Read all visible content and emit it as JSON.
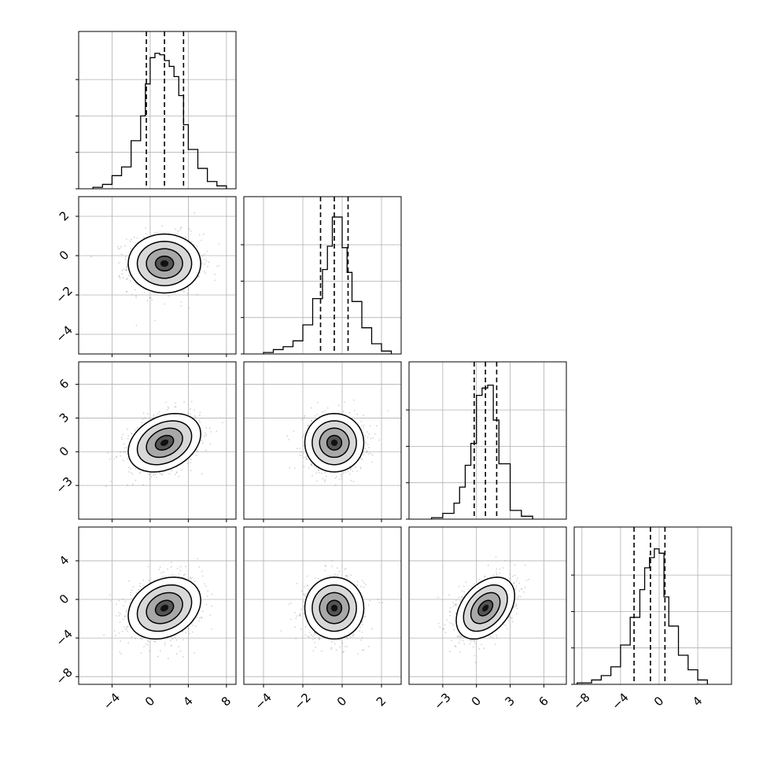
{
  "chart_data": {
    "type": "corner",
    "grid": true,
    "quantile_lines": "dashed",
    "params": [
      {
        "range": [
          -7.5,
          9.0
        ],
        "ticks": [
          -4,
          0,
          4,
          8
        ],
        "tick_labels": [
          "−4",
          "0",
          "4",
          "8"
        ],
        "quantiles": [
          -0.4,
          1.5,
          3.5
        ],
        "hist_ymax": 1.0
      },
      {
        "range": [
          -5.0,
          3.0
        ],
        "ticks": [
          -4,
          -2,
          0,
          2
        ],
        "tick_labels": [
          "−4",
          "−2",
          "0",
          "2"
        ],
        "quantiles": [
          -1.1,
          -0.4,
          0.3
        ],
        "hist_ymax": 1.0
      },
      {
        "range": [
          -6.0,
          8.0
        ],
        "ticks": [
          -3,
          0,
          3,
          6
        ],
        "tick_labels": [
          "−3",
          "0",
          "3",
          "6"
        ],
        "quantiles": [
          -0.2,
          0.8,
          1.8
        ],
        "hist_ymax": 1.0
      },
      {
        "range": [
          -8.8,
          7.5
        ],
        "ticks": [
          -8,
          -4,
          0,
          4
        ],
        "tick_labels": [
          "−8",
          "−4",
          "0",
          "4"
        ],
        "quantiles": [
          -2.6,
          -0.9,
          0.6
        ],
        "hist_ymax": 1.0
      }
    ],
    "histograms": [
      {
        "param": 0,
        "edges": [
          -6,
          -5,
          -4,
          -3,
          -2,
          -1,
          -0.5,
          0,
          0.5,
          1,
          1.5,
          2,
          2.5,
          3,
          3.5,
          4,
          5,
          6,
          7,
          8
        ],
        "values": [
          0.01,
          0.03,
          0.09,
          0.15,
          0.33,
          0.5,
          0.72,
          0.9,
          0.93,
          0.92,
          0.88,
          0.84,
          0.77,
          0.64,
          0.44,
          0.27,
          0.14,
          0.05,
          0.02
        ]
      },
      {
        "param": 1,
        "edges": [
          -4,
          -3.5,
          -3,
          -2.5,
          -2,
          -1.5,
          -1,
          -0.75,
          -0.5,
          -0.25,
          0,
          0.25,
          0.5,
          1,
          1.5,
          2,
          2.5
        ],
        "values": [
          0.01,
          0.03,
          0.05,
          0.09,
          0.2,
          0.38,
          0.58,
          0.74,
          0.94,
          0.94,
          0.73,
          0.56,
          0.36,
          0.18,
          0.07,
          0.02
        ]
      },
      {
        "param": 2,
        "edges": [
          -4,
          -3,
          -2,
          -1.5,
          -1,
          -0.5,
          0,
          0.5,
          1,
          1.5,
          2,
          3,
          4,
          5
        ],
        "values": [
          0.01,
          0.04,
          0.11,
          0.22,
          0.37,
          0.52,
          0.85,
          0.9,
          0.92,
          0.68,
          0.38,
          0.06,
          0.02
        ]
      },
      {
        "param": 3,
        "edges": [
          -8.5,
          -7,
          -6,
          -5,
          -4,
          -3,
          -2,
          -1.5,
          -1,
          -0.5,
          0,
          0.5,
          1,
          2,
          3,
          4,
          5
        ],
        "values": [
          0.01,
          0.03,
          0.06,
          0.12,
          0.27,
          0.46,
          0.65,
          0.8,
          0.87,
          0.93,
          0.9,
          0.6,
          0.4,
          0.2,
          0.1,
          0.03
        ]
      }
    ],
    "pairs": [
      {
        "x": 0,
        "y": 1,
        "mean": [
          1.5,
          -0.4
        ],
        "sd": [
          1.9,
          0.75
        ],
        "rho": 0.0
      },
      {
        "x": 0,
        "y": 2,
        "mean": [
          1.5,
          0.8
        ],
        "sd": [
          1.9,
          1.3
        ],
        "rho": 0.3
      },
      {
        "x": 1,
        "y": 2,
        "mean": [
          -0.4,
          0.8
        ],
        "sd": [
          0.75,
          1.3
        ],
        "rho": 0.0
      },
      {
        "x": 0,
        "y": 3,
        "mean": [
          1.5,
          -0.9
        ],
        "sd": [
          1.9,
          1.6
        ],
        "rho": 0.25
      },
      {
        "x": 1,
        "y": 3,
        "mean": [
          -0.4,
          -0.9
        ],
        "sd": [
          0.75,
          1.6
        ],
        "rho": 0.0
      },
      {
        "x": 2,
        "y": 3,
        "mean": [
          0.8,
          -0.9
        ],
        "sd": [
          1.3,
          1.6
        ],
        "rho": 0.4
      }
    ],
    "contour_levels": [
      "0.5σ",
      "1σ",
      "1.5σ",
      "2σ"
    ],
    "point_color": "#808080",
    "line_color": "#000000",
    "grid_color": "#b0b0b0"
  }
}
